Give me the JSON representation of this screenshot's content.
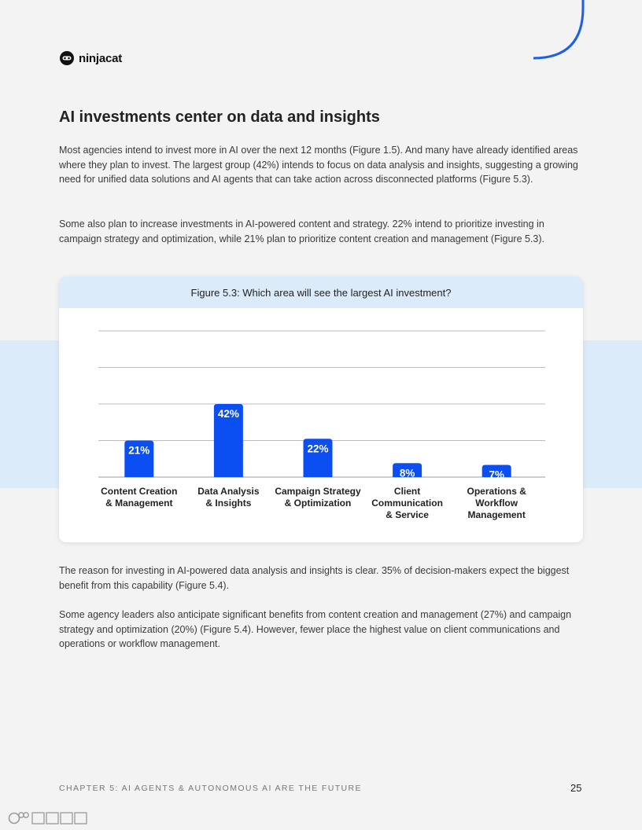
{
  "brand": {
    "name": "ninjacat",
    "logo_icon": "cat-face-icon",
    "accent": "#1f5fe8"
  },
  "heading": "AI investments center on data and insights",
  "paragraphs": [
    "Most agencies intend to invest more in AI over the next 12 months (Figure 1.5). And many have already identified areas where they plan to invest. The largest group (42%) intends to focus on data analysis and insights, suggesting a growing need for unified data solutions and AI agents that can take action across disconnected platforms (Figure 5.3).",
    "Some also plan to increase investments in AI-powered content and strategy. 22% intend to prioritize investing in campaign strategy and optimization, while 21% plan to prioritize content creation and management (Figure 5.3).",
    "The reason for investing in AI-powered data analysis and insights is clear. 35% of decision-makers expect the biggest benefit from this capability (Figure 5.4).",
    "Some agency leaders also anticipate significant benefits from content creation and management (27%) and campaign strategy and optimization (20%) (Figure 5.4). However, fewer place the highest value on client communications and operations or workflow management."
  ],
  "chart_data": {
    "type": "bar",
    "title": "Figure 5.3: Which area will see the largest AI investment?",
    "categories": [
      [
        "Content Creation",
        "& Management"
      ],
      [
        "Data Analysis",
        "& Insights"
      ],
      [
        "Campaign Strategy",
        "& Optimization"
      ],
      [
        "Client",
        "Communication",
        "& Service"
      ],
      [
        "Operations &",
        "Workflow",
        "Management"
      ]
    ],
    "values": [
      21,
      42,
      22,
      8,
      7
    ],
    "data_labels": [
      "21%",
      "42%",
      "22%",
      "8%",
      "7%"
    ],
    "ylim": [
      0,
      84
    ],
    "grid": true,
    "bar_color": "#0b4ff2",
    "legend": "none"
  },
  "footer": {
    "chapter": "CHAPTER 5: AI AGENTS & AUTONOMOUS AI ARE THE FUTURE",
    "page": "25"
  },
  "watermark": {
    "icon": "watermark-logo-icon"
  }
}
